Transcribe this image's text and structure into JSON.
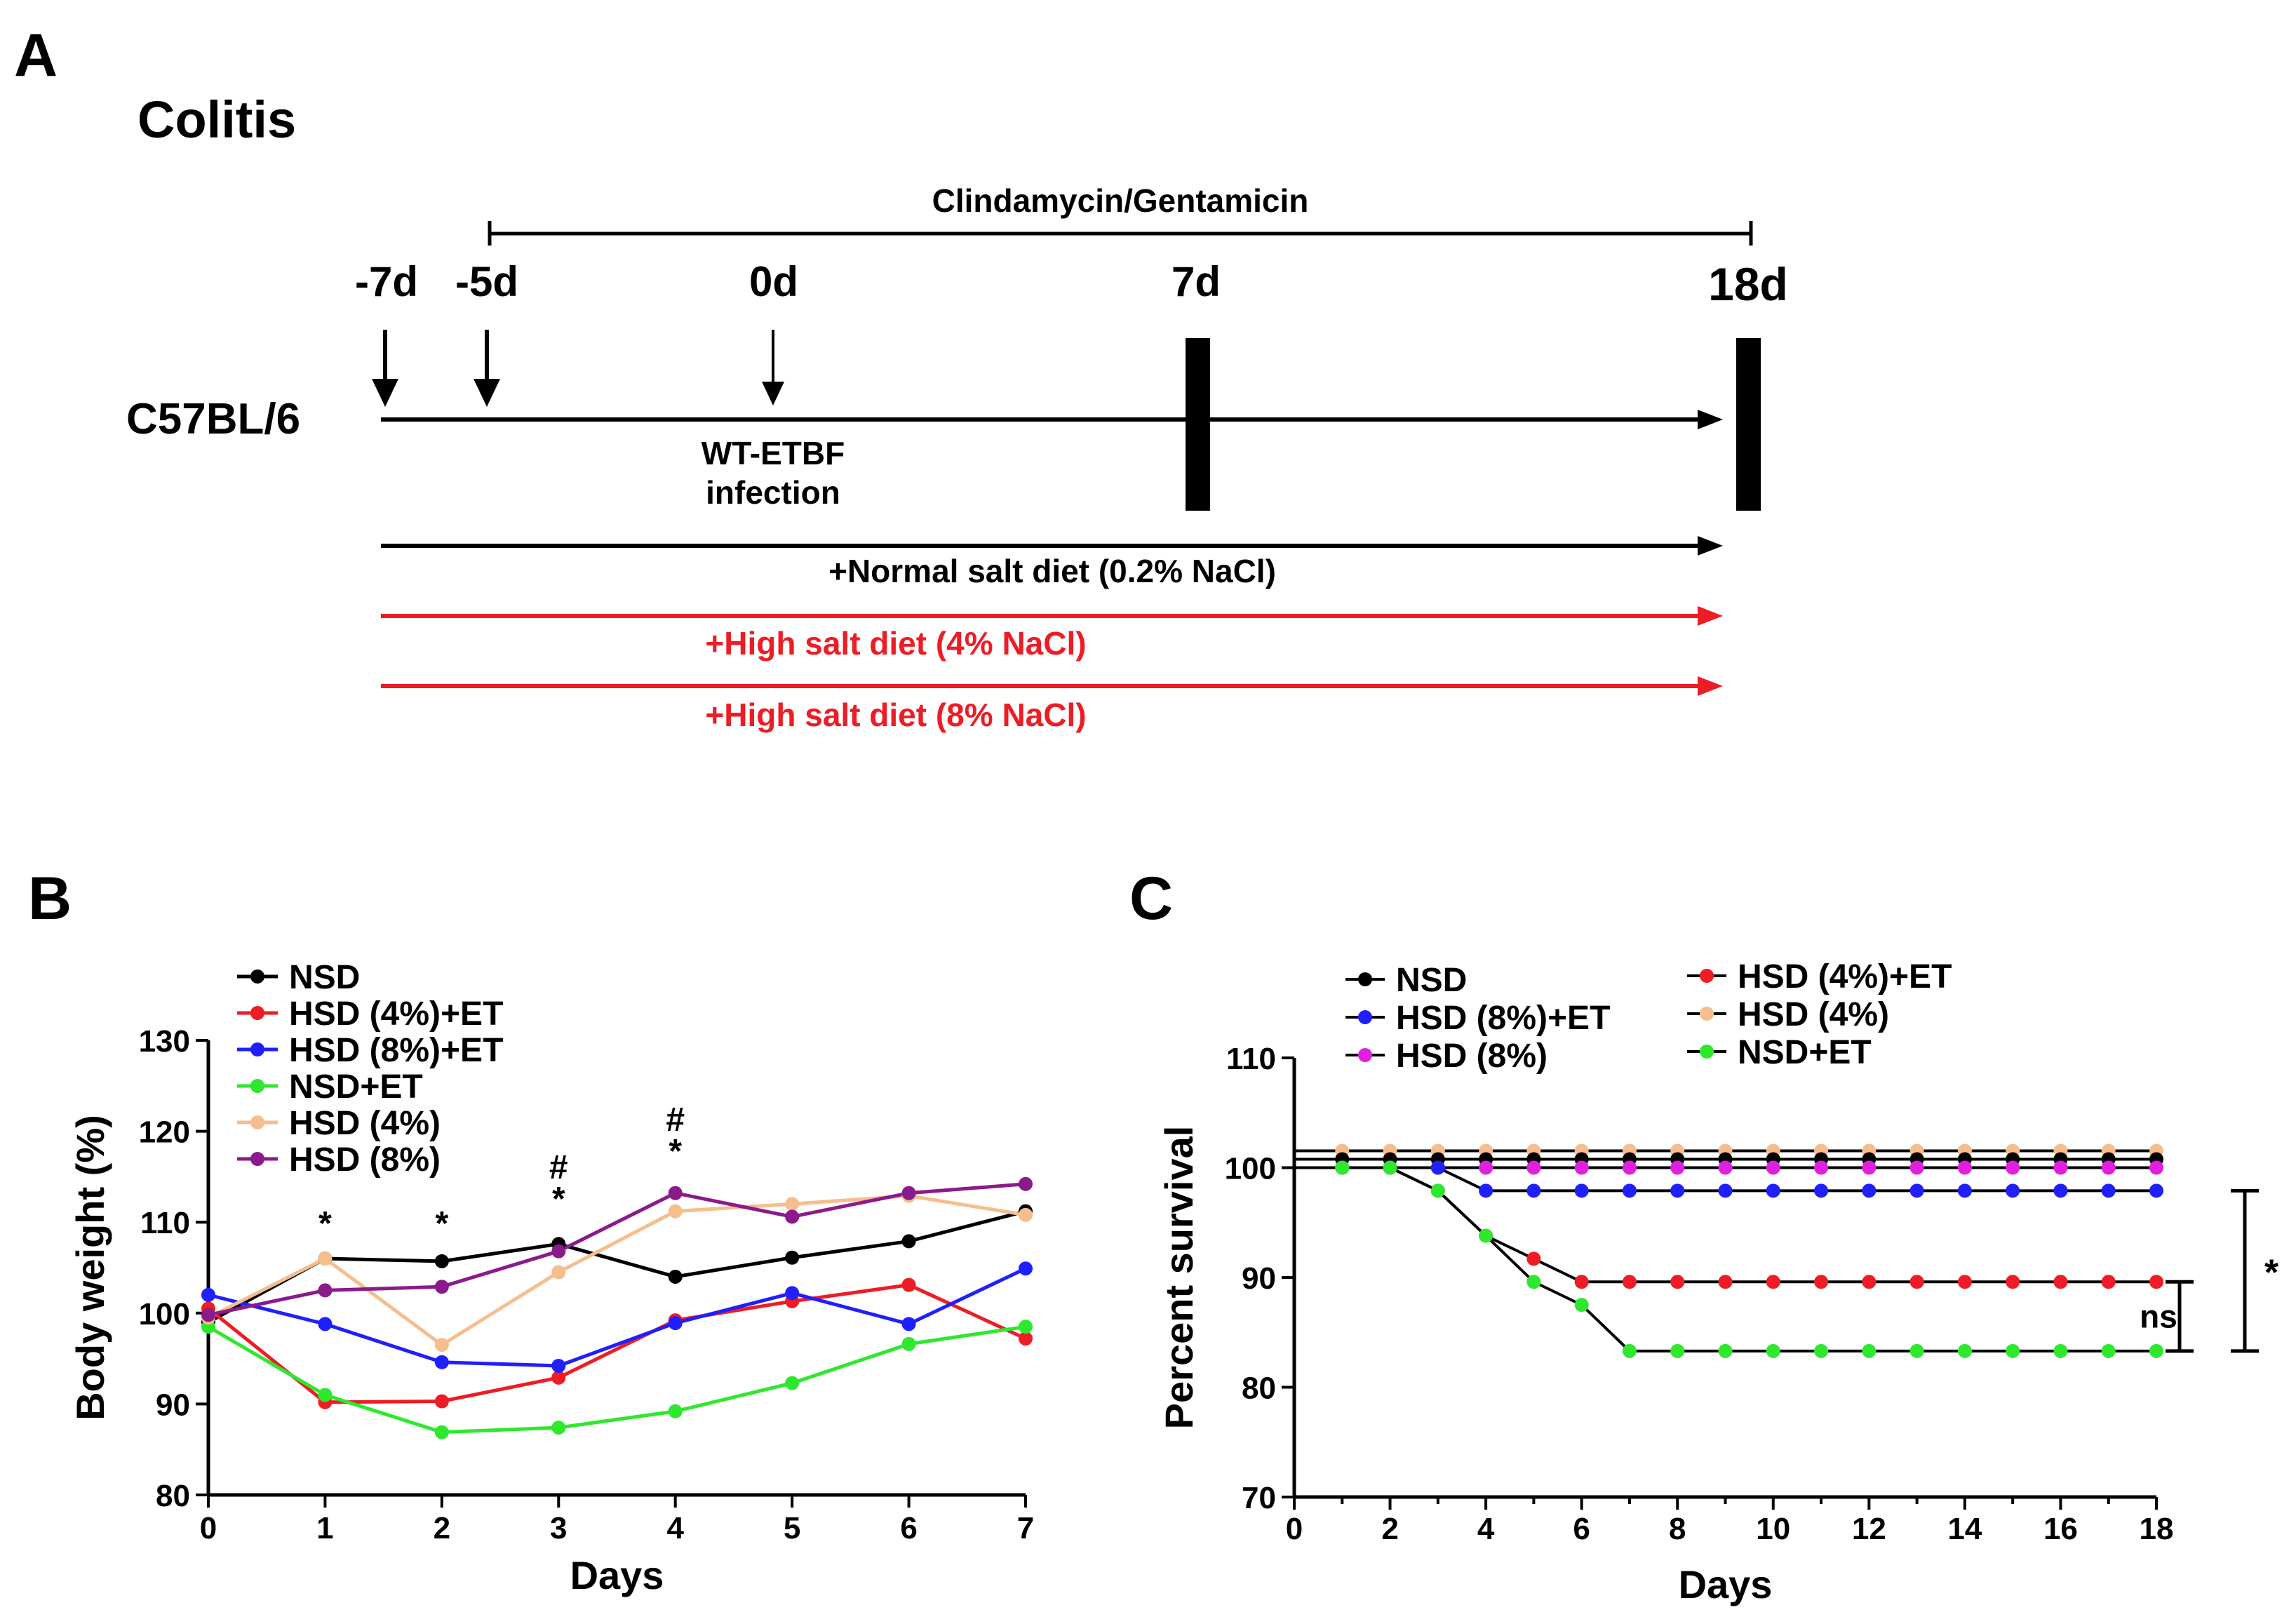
{
  "panelA": {
    "label": "A",
    "title": "Colitis",
    "mouse_strain": "C57BL/6",
    "antibiotic_label": "Clindamycin/Gentamicin",
    "days": [
      "-7d",
      "-5d",
      "0d",
      "7d",
      "18d"
    ],
    "infection_label_line1": "WT-ETBF",
    "infection_label_line2": "infection",
    "diets": [
      {
        "label": "+Normal salt diet (0.2% NaCl)",
        "color": "#000000"
      },
      {
        "label": "+High salt diet (4% NaCl)",
        "color": "#ee1c24"
      },
      {
        "label": "+High salt diet (8% NaCl)",
        "color": "#ee1c24"
      }
    ]
  },
  "chart_data": [
    {
      "panel": "B",
      "type": "line",
      "title": "",
      "xlabel": "Days",
      "ylabel": "Body weight (%)",
      "xlim": [
        0,
        7
      ],
      "ylim": [
        80,
        130
      ],
      "xticks": [
        "0",
        "1",
        "2",
        "3",
        "4",
        "5",
        "6",
        "7"
      ],
      "yticks": [
        "80",
        "90",
        "100",
        "110",
        "120",
        "130"
      ],
      "x": [
        0,
        1,
        2,
        3,
        4,
        5,
        6,
        7
      ],
      "series": [
        {
          "name": "NSD",
          "color": "#000000",
          "values": [
            99,
            106,
            105.7,
            107.6,
            104,
            106.1,
            107.9,
            111.2
          ]
        },
        {
          "name": "HSD (4%)+ET",
          "color": "#ee1c24",
          "values": [
            100.5,
            90.2,
            90.3,
            92.9,
            99.2,
            101.3,
            103.1,
            97.2
          ]
        },
        {
          "name": "HSD (8%)+ET",
          "color": "#1f1fff",
          "values": [
            102,
            98.8,
            94.6,
            94.2,
            98.9,
            102.2,
            98.8,
            104.9
          ]
        },
        {
          "name": "NSD+ET",
          "color": "#2ee82e",
          "values": [
            98.5,
            91,
            86.9,
            87.4,
            89.2,
            92.3,
            96.6,
            98.5
          ]
        },
        {
          "name": "HSD (4%)",
          "color": "#f5be8c",
          "values": [
            99.5,
            106,
            96.5,
            104.5,
            111.2,
            112,
            112.9,
            110.8
          ]
        },
        {
          "name": "HSD (8%)",
          "color": "#8b1a8b",
          "values": [
            99.8,
            102.5,
            102.9,
            106.8,
            113.2,
            110.6,
            113.2,
            114.2
          ]
        }
      ],
      "annotations": [
        {
          "x": 1,
          "lines": [
            "*"
          ]
        },
        {
          "x": 2,
          "lines": [
            "*"
          ]
        },
        {
          "x": 3,
          "lines": [
            "#",
            "*"
          ]
        },
        {
          "x": 4,
          "lines": [
            "#",
            "*"
          ]
        }
      ],
      "legend_position": "top-left"
    },
    {
      "panel": "C",
      "type": "line",
      "title": "",
      "xlabel": "Days",
      "ylabel": "Percent survival",
      "xlim": [
        0,
        18
      ],
      "ylim": [
        70,
        110
      ],
      "xticks": [
        "0",
        "2",
        "4",
        "6",
        "8",
        "10",
        "12",
        "14",
        "16",
        "18"
      ],
      "yticks": [
        "70",
        "80",
        "90",
        "100",
        "110"
      ],
      "series": [
        {
          "name": "NSD",
          "color": "#000000",
          "offset": 1,
          "steps": [
            [
              0,
              100
            ],
            [
              18,
              100
            ]
          ]
        },
        {
          "name": "HSD (8%)+ET",
          "color": "#1f1fff",
          "offset": 0,
          "steps": [
            [
              0,
              100
            ],
            [
              3,
              100
            ],
            [
              4,
              97.9
            ],
            [
              18,
              97.9
            ]
          ]
        },
        {
          "name": "HSD (8%)",
          "color": "#e020e0",
          "offset": 0,
          "steps": [
            [
              0,
              100
            ],
            [
              18,
              100
            ]
          ]
        },
        {
          "name": "HSD (4%)+ET",
          "color": "#ee1c24",
          "offset": 0,
          "steps": [
            [
              0,
              100
            ],
            [
              2,
              100
            ],
            [
              3,
              97.9
            ],
            [
              4,
              93.8
            ],
            [
              5,
              91.7
            ],
            [
              6,
              89.6
            ],
            [
              18,
              89.6
            ]
          ]
        },
        {
          "name": "HSD (4%)",
          "color": "#f5be8c",
          "offset": 2,
          "steps": [
            [
              0,
              100
            ],
            [
              18,
              100
            ]
          ]
        },
        {
          "name": "NSD+ET",
          "color": "#2ee82e",
          "offset": 0,
          "steps": [
            [
              0,
              100
            ],
            [
              2,
              100
            ],
            [
              3,
              97.9
            ],
            [
              4,
              93.8
            ],
            [
              5,
              89.6
            ],
            [
              6,
              87.5
            ],
            [
              7,
              83.3
            ],
            [
              18,
              83.3
            ]
          ]
        }
      ],
      "significance": [
        {
          "label": "ns",
          "from": 89.6,
          "to": 83.3
        },
        {
          "label": "*",
          "from": 97.9,
          "to": 83.3
        }
      ],
      "legend_position": "top"
    }
  ],
  "panelB": {
    "label": "B"
  },
  "panelC": {
    "label": "C"
  }
}
